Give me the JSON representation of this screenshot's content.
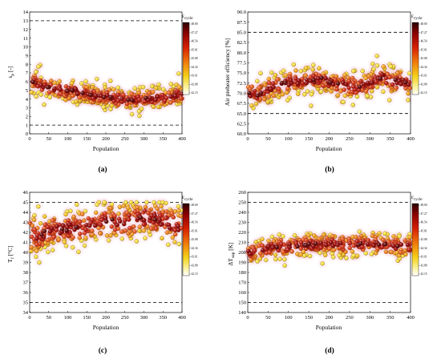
{
  "chart_data": [
    {
      "type": "scatter",
      "panel_label": "(a)",
      "xlabel": "Population",
      "ylabel": "s_p [-]",
      "ylabel_main": "s",
      "ylabel_sub": "p",
      "ylabel_rest": " [-]",
      "xlim": [
        0,
        400
      ],
      "ylim": [
        0,
        14
      ],
      "xticks": [
        "0",
        "50",
        "100",
        "150",
        "200",
        "250",
        "300",
        "350",
        "400"
      ],
      "yticks": [
        "0",
        "1",
        "2",
        "3",
        "4",
        "5",
        "6",
        "7",
        "8",
        "9",
        "10",
        "11",
        "12",
        "13",
        "14"
      ],
      "bounds": [
        1,
        13
      ],
      "seed": 11,
      "series": [
        {
          "x": [
            5,
            15,
            30,
            60,
            90,
            120,
            150,
            180,
            210,
            240,
            270,
            300,
            330,
            360,
            390
          ],
          "y": [
            5.8,
            6.0,
            5.5,
            5.2,
            5.0,
            4.9,
            4.6,
            4.3,
            4.2,
            4.0,
            3.9,
            4.0,
            4.1,
            4.2,
            4.5
          ],
          "spread": 0.65
        }
      ],
      "colorbar": {
        "title_main": "ε",
        "title_sub": "cycle",
        "ticks": [
          "48.00",
          "47.27",
          "46.54",
          "45.81",
          "45.08",
          "44.34",
          "43.61",
          "42.88",
          "42.15"
        ]
      }
    },
    {
      "type": "scatter",
      "panel_label": "(b)",
      "xlabel": "Population",
      "ylabel": "Air preheater efficiency [%]",
      "xlim": [
        0,
        400
      ],
      "ylim": [
        60.0,
        90.0
      ],
      "xticks": [
        "0",
        "50",
        "100",
        "150",
        "200",
        "250",
        "300",
        "350",
        "400"
      ],
      "yticks": [
        "60.0",
        "62.5",
        "65.0",
        "67.5",
        "70.0",
        "72.5",
        "75.0",
        "77.5",
        "80.0",
        "82.5",
        "85.0",
        "87.5",
        "90.0"
      ],
      "bounds": [
        65.0,
        85.0
      ],
      "seed": 23,
      "series": [
        {
          "x": [
            5,
            20,
            40,
            60,
            90,
            120,
            150,
            180,
            210,
            240,
            270,
            300,
            330,
            360,
            390
          ],
          "y": [
            70.0,
            69.5,
            70.5,
            71.5,
            72.5,
            73.0,
            73.0,
            73.5,
            72.5,
            72.0,
            71.5,
            72.5,
            74.0,
            73.0,
            72.5
          ],
          "spread": 1.7
        }
      ],
      "colorbar": {
        "title_main": "ε",
        "title_sub": "cycle",
        "ticks": [
          "48.00",
          "47.27",
          "46.54",
          "45.81",
          "45.08",
          "44.34",
          "43.61",
          "42.88",
          "42.15"
        ]
      }
    },
    {
      "type": "scatter",
      "panel_label": "(c)",
      "xlabel": "Population",
      "ylabel": "T_f [°C]",
      "ylabel_main": "T",
      "ylabel_sub": "f",
      "ylabel_rest": " [°C]",
      "xlim": [
        0,
        400
      ],
      "ylim": [
        34,
        46
      ],
      "xticks": [
        "0",
        "50",
        "100",
        "150",
        "200",
        "250",
        "300",
        "350",
        "400"
      ],
      "yticks": [
        "34",
        "35",
        "36",
        "37",
        "38",
        "39",
        "40",
        "41",
        "42",
        "43",
        "44",
        "45",
        "46"
      ],
      "bounds": [
        35,
        45
      ],
      "seed": 37,
      "series": [
        {
          "x": [
            5,
            20,
            40,
            60,
            90,
            120,
            150,
            180,
            210,
            240,
            270,
            300,
            330,
            360,
            390
          ],
          "y": [
            41.8,
            41.5,
            42.0,
            42.2,
            42.3,
            42.5,
            42.7,
            43.0,
            43.2,
            43.0,
            43.2,
            43.5,
            43.3,
            43.0,
            42.5
          ],
          "spread": 1.0
        }
      ],
      "colorbar": {
        "title_main": "ε",
        "title_sub": "cycle",
        "ticks": [
          "48.00",
          "47.27",
          "46.54",
          "45.81",
          "45.08",
          "44.34",
          "43.61",
          "42.88",
          "42.15"
        ]
      }
    },
    {
      "type": "scatter",
      "panel_label": "(d)",
      "xlabel": "Population",
      "ylabel": "ΔT_sup [K]",
      "ylabel_main": "ΔT",
      "ylabel_sub": "sup",
      "ylabel_rest": " [K]",
      "xlim": [
        0,
        400
      ],
      "ylim": [
        140,
        260
      ],
      "xticks": [
        "0",
        "50",
        "100",
        "150",
        "200",
        "250",
        "300",
        "350",
        "400"
      ],
      "yticks": [
        "140",
        "150",
        "160",
        "170",
        "180",
        "190",
        "200",
        "210",
        "220",
        "230",
        "240",
        "250",
        "260"
      ],
      "bounds": [
        150,
        250
      ],
      "seed": 51,
      "series": [
        {
          "x": [
            5,
            20,
            40,
            60,
            90,
            120,
            150,
            180,
            210,
            240,
            270,
            300,
            330,
            360,
            390
          ],
          "y": [
            200,
            202,
            204,
            205,
            206,
            207,
            208,
            208,
            209,
            208,
            208,
            209,
            208,
            207,
            206
          ],
          "spread": 6.0
        }
      ],
      "colorbar": {
        "title_main": "ε",
        "title_sub": "cycle",
        "ticks": [
          "48.00",
          "47.27",
          "46.54",
          "45.81",
          "45.08",
          "44.34",
          "43.61",
          "42.88",
          "42.15"
        ]
      }
    }
  ]
}
